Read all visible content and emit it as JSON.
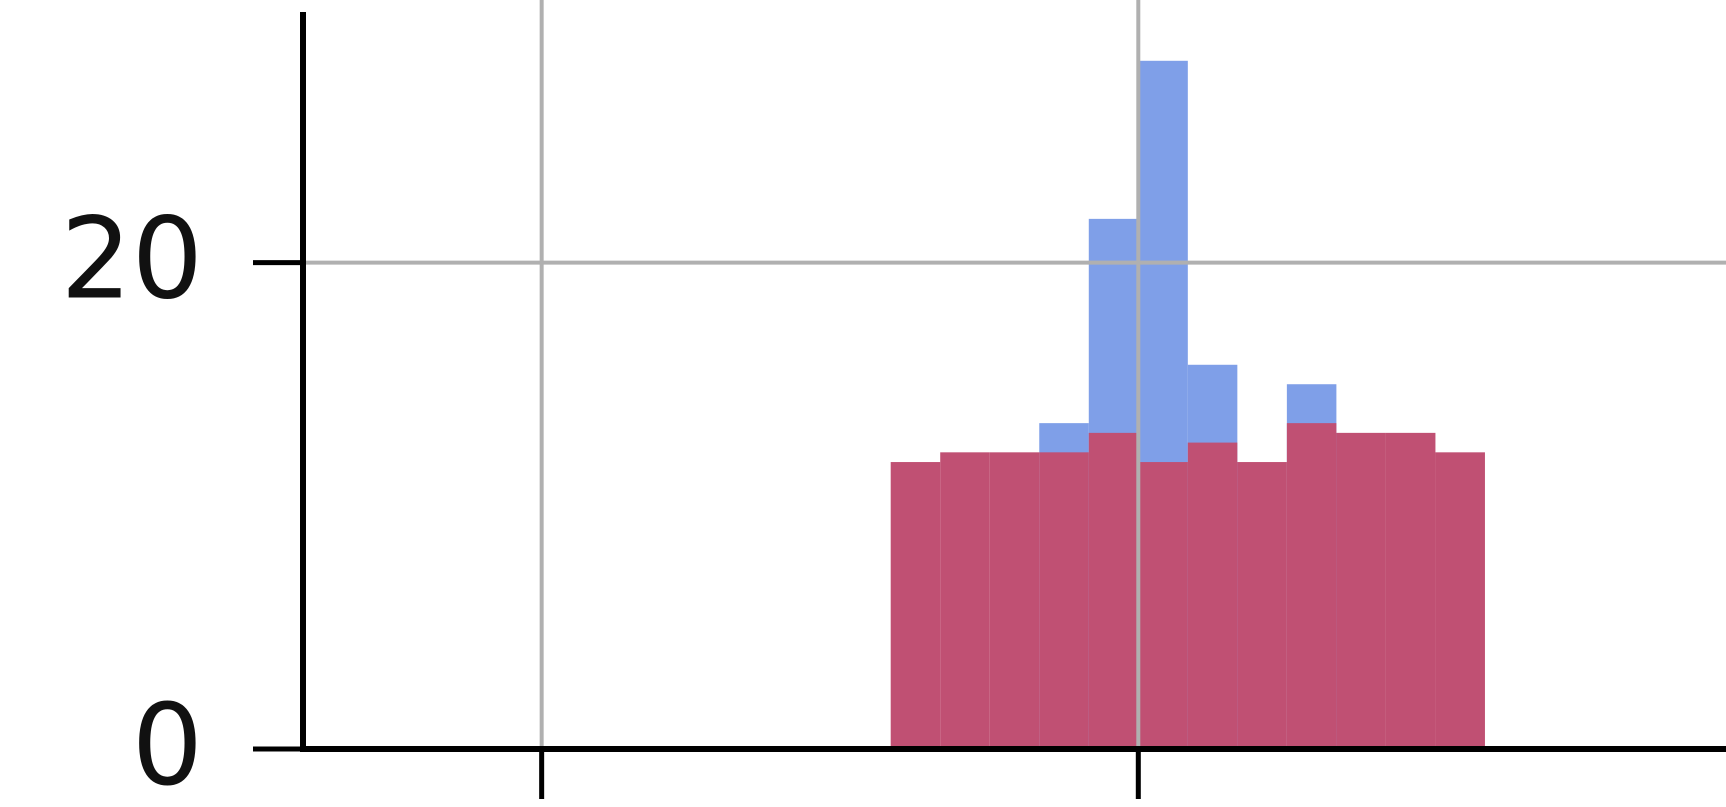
{
  "chart_data": {
    "type": "histogram",
    "bins": [
      -0.83,
      -0.664,
      -0.498,
      -0.332,
      -0.166,
      0,
      0.166,
      0.332,
      0.498,
      0.664,
      0.83,
      0.996,
      1.162
    ],
    "series": [
      {
        "color": "#7f9fe8",
        "values": [
          null,
          null,
          null,
          13.4,
          21.8,
          28.3,
          15.8,
          null,
          15.0,
          null,
          null,
          null
        ]
      },
      {
        "color": "#c05073",
        "values": [
          11.8,
          12.2,
          12.2,
          12.2,
          13.0,
          11.8,
          12.6,
          11.8,
          13.4,
          13.0,
          13.0,
          12.2
        ]
      }
    ],
    "xlim": [
      -2.8,
      1.97
    ],
    "ylim": [
      0,
      30.8
    ],
    "xticks": [
      -2,
      0
    ],
    "yticks": [
      0,
      20
    ],
    "grid": true
  }
}
